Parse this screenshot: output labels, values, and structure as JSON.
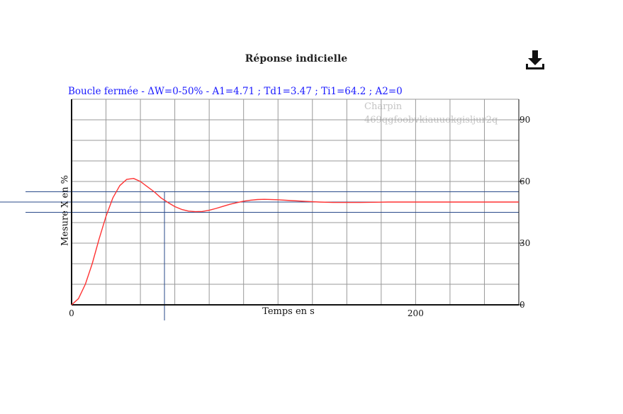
{
  "header": {
    "title": "Réponse indicielle",
    "download_icon": "download-icon"
  },
  "subtitle": "Boucle fermée - ΔW=0-50% - A1=4.71 ; Td1=3.47 ; Ti1=64.2 ; A2=0",
  "watermark": {
    "line1": "Charpin",
    "line2": "469qgfoobvkiauuokgisljur2q"
  },
  "chart_data": {
    "type": "line",
    "title": "Réponse indicielle",
    "xlabel": "Temps en s",
    "ylabel": "Mesure X en %",
    "xlim": [
      0,
      260
    ],
    "ylim": [
      0,
      100
    ],
    "x_ticks": [
      0,
      200
    ],
    "x_tick_labels": [
      "0",
      "200"
    ],
    "y_ticks": [
      0,
      30,
      60,
      90
    ],
    "y_tick_labels": [
      "0",
      "30",
      "60",
      "90"
    ],
    "grid": true,
    "colors": {
      "response": "#ff3333",
      "reference": "#2a4a8a",
      "grid": "#999999"
    },
    "reference_lines": {
      "setpoint": 50,
      "band_upper": 55,
      "band_lower": 45,
      "settling_time": 54
    },
    "series": [
      {
        "x": [
          0,
          4,
          8,
          12,
          16,
          20,
          24,
          28,
          32,
          36,
          40,
          44,
          48,
          52,
          56,
          60,
          64,
          68,
          72,
          76,
          80,
          84,
          88,
          92,
          96,
          100,
          104,
          108,
          112,
          120,
          128,
          136,
          144,
          152,
          160,
          168,
          176,
          184,
          192,
          200,
          210,
          220,
          230,
          240,
          250,
          260
        ],
        "values": [
          0,
          3,
          10,
          20,
          32,
          43,
          52,
          58,
          61,
          61.5,
          60,
          57.5,
          55,
          52,
          49.8,
          47.8,
          46.4,
          45.6,
          45.3,
          45.4,
          46.0,
          46.9,
          47.9,
          48.9,
          49.7,
          50.4,
          50.9,
          51.2,
          51.3,
          51.1,
          50.7,
          50.3,
          50.0,
          49.8,
          49.8,
          49.8,
          49.9,
          50.0,
          50.0,
          50.0,
          50.0,
          50.0,
          50.0,
          50.0,
          50.0,
          50.0
        ]
      }
    ]
  }
}
